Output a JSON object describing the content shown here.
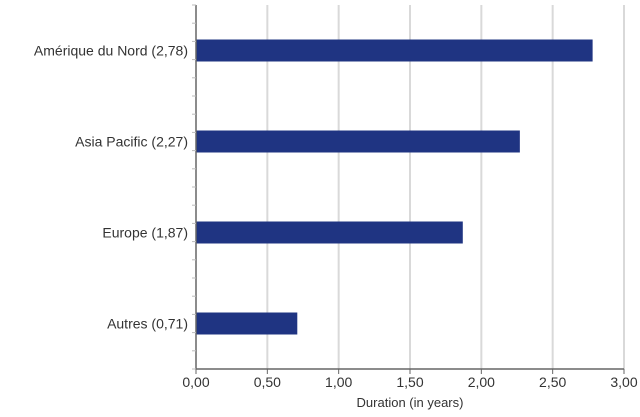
{
  "chart_data": {
    "type": "bar",
    "orientation": "horizontal",
    "categories": [
      "Amérique du Nord (2,78)",
      "Asia Pacific (2,27)",
      "Europe (1,87)",
      "Autres (0,71)"
    ],
    "values": [
      2.78,
      2.27,
      1.87,
      0.71
    ],
    "xlabel": "Duration (in years)",
    "xlim": [
      0,
      3
    ],
    "xticks": [
      "0,00",
      "0,50",
      "1,00",
      "1,50",
      "2,00",
      "2,50",
      "3,00"
    ],
    "xtick_values": [
      0,
      0.5,
      1,
      1.5,
      2,
      2.5,
      3
    ],
    "grid": "vertical",
    "bar_color": "#1f3482",
    "grid_color": "#d9d9d9",
    "axis_color": "#666666"
  }
}
